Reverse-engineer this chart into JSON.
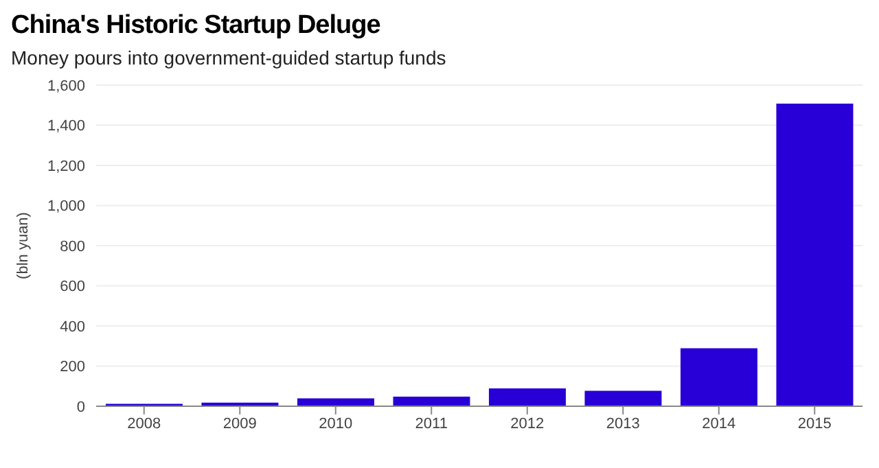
{
  "chart_data": {
    "type": "bar",
    "title": "China's Historic Startup Deluge",
    "subtitle": "Money pours into government-guided startup funds",
    "ylabel": "(bln yuan)",
    "categories": [
      "2008",
      "2009",
      "2010",
      "2011",
      "2012",
      "2013",
      "2014",
      "2015"
    ],
    "values": [
      12,
      18,
      39,
      48,
      89,
      77,
      289,
      1508
    ],
    "color": "#2800d7",
    "ylim": [
      0,
      1600
    ],
    "yticks": [
      {
        "value": 0,
        "label": "0"
      },
      {
        "value": 200,
        "label": "200"
      },
      {
        "value": 400,
        "label": "400"
      },
      {
        "value": 600,
        "label": "600"
      },
      {
        "value": 800,
        "label": "800"
      },
      {
        "value": 1000,
        "label": "1,000"
      },
      {
        "value": 1200,
        "label": "1,200"
      },
      {
        "value": 1400,
        "label": "1,400"
      },
      {
        "value": 1600,
        "label": "1,600"
      }
    ],
    "grid": "y",
    "legend": false
  }
}
